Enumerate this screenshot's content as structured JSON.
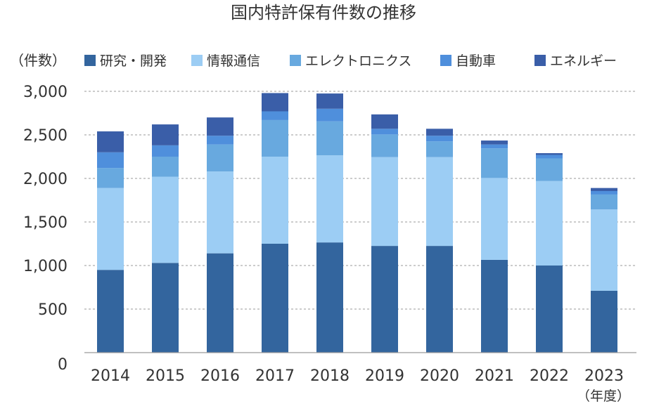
{
  "chart_data": {
    "type": "bar",
    "stacked": true,
    "title": "国内特許保有件数の推移",
    "ylabel": "（件数）",
    "xlabel": "（年度）",
    "ylim": [
      0,
      3000
    ],
    "yticks": [
      "0",
      "500",
      "1,000",
      "1,500",
      "2,000",
      "2,500",
      "3,000"
    ],
    "ytick_values": [
      0,
      500,
      1000,
      1500,
      2000,
      2500,
      3000
    ],
    "grid": true,
    "legend_position": "top",
    "categories": [
      "2014",
      "2015",
      "2016",
      "2017",
      "2018",
      "2019",
      "2020",
      "2021",
      "2022",
      "2023"
    ],
    "series": [
      {
        "name": "研究・開発",
        "color": "#33659e",
        "values": [
          950,
          1030,
          1140,
          1250,
          1265,
          1225,
          1225,
          1065,
          1000,
          710
        ]
      },
      {
        "name": "情報通信",
        "color": "#9ccdf4",
        "values": [
          940,
          990,
          940,
          1000,
          1000,
          1020,
          1020,
          940,
          970,
          935
        ]
      },
      {
        "name": "エレクトロニクス",
        "color": "#68a9df",
        "values": [
          230,
          230,
          310,
          420,
          390,
          260,
          180,
          340,
          260,
          170
        ]
      },
      {
        "name": "自動車",
        "color": "#4f8fdc",
        "values": [
          180,
          130,
          100,
          100,
          145,
          65,
          65,
          45,
          40,
          40
        ]
      },
      {
        "name": "エネルギー",
        "color": "#3a5ea8",
        "values": [
          240,
          240,
          210,
          210,
          175,
          165,
          80,
          45,
          20,
          35
        ]
      }
    ]
  }
}
